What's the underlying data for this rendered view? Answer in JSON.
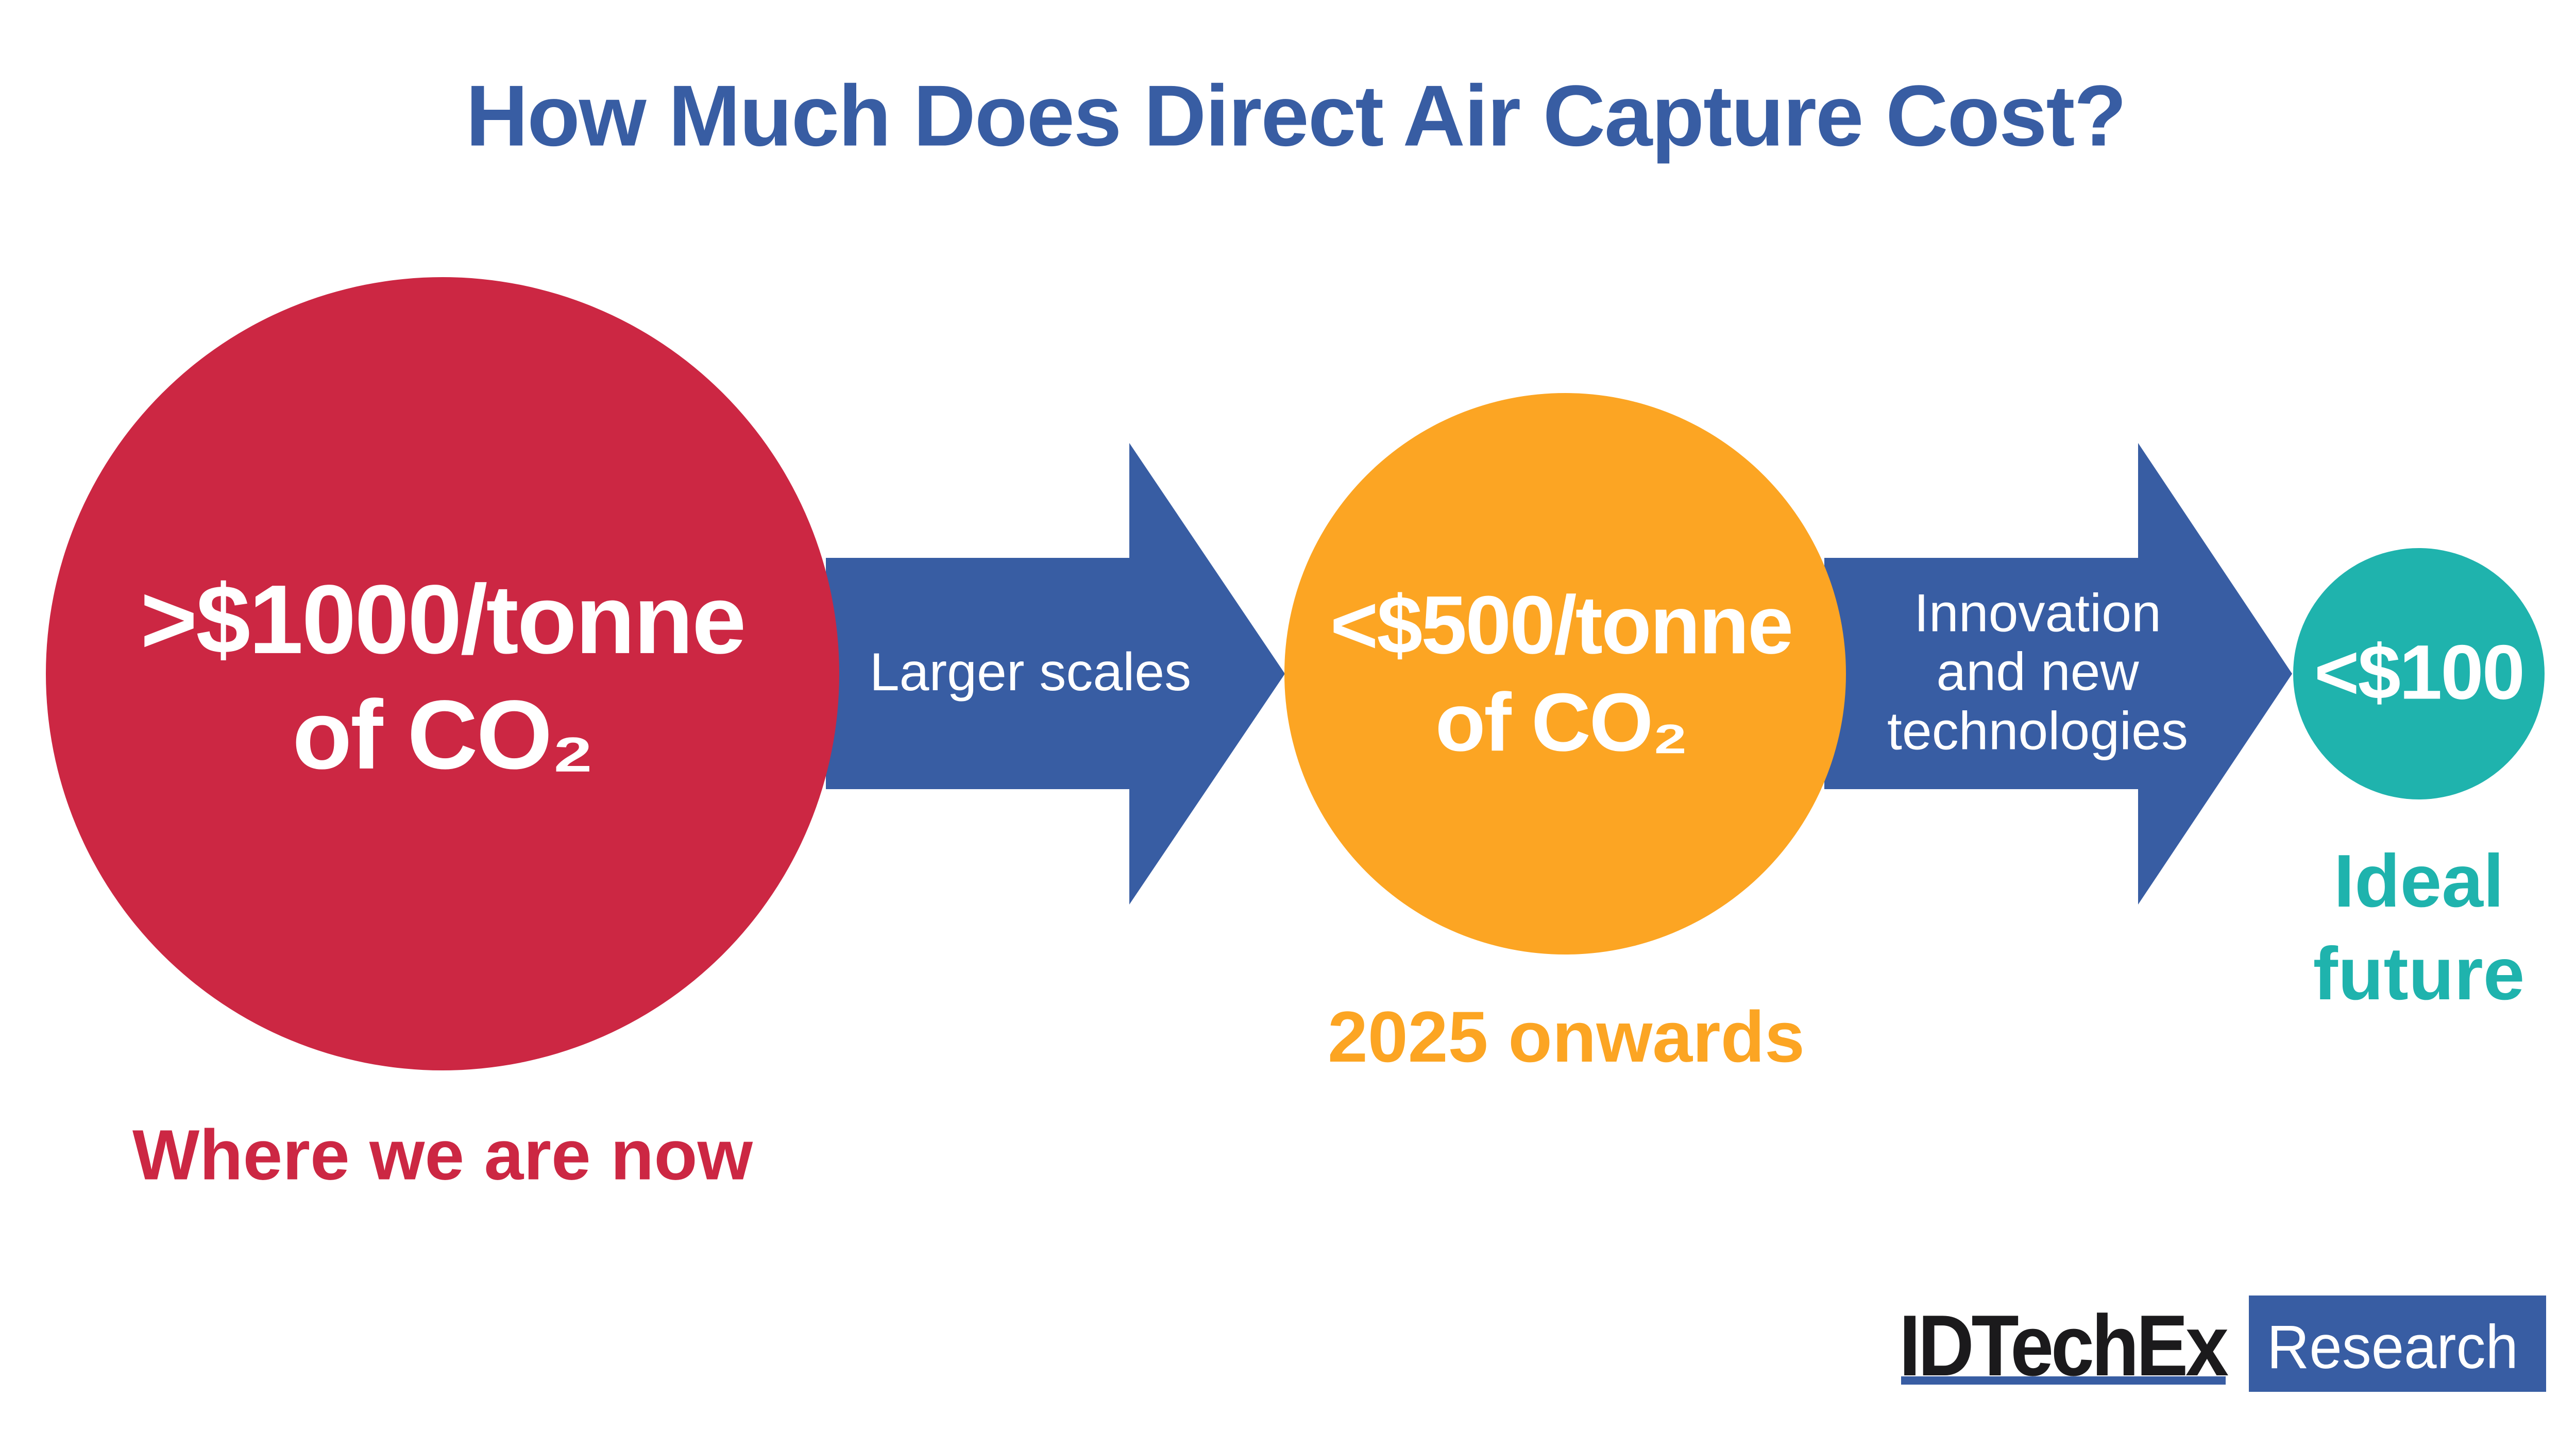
{
  "title": "How Much Does Direct Air Capture Cost?",
  "colors": {
    "title": "#385DA3",
    "now": "#CC2743",
    "mid": "#FCA523",
    "future": "#1FB3AD",
    "arrow": "#385DA3"
  },
  "stages": [
    {
      "value_line1": ">$1000/tonne",
      "value_line2": "of CO₂",
      "caption": "Where we are now"
    },
    {
      "value_line1": "<$500/tonne",
      "value_line2": "of CO₂",
      "caption": "2025 onwards"
    },
    {
      "value_line1": "<$100",
      "caption_line1": "Ideal",
      "caption_line2": "future"
    }
  ],
  "arrows": [
    {
      "label": "Larger scales"
    },
    {
      "label_line1": "Innovation",
      "label_line2": "and new",
      "label_line3": "technologies"
    }
  ],
  "logo": {
    "brand": "IDTechEx",
    "tag": "Research"
  }
}
